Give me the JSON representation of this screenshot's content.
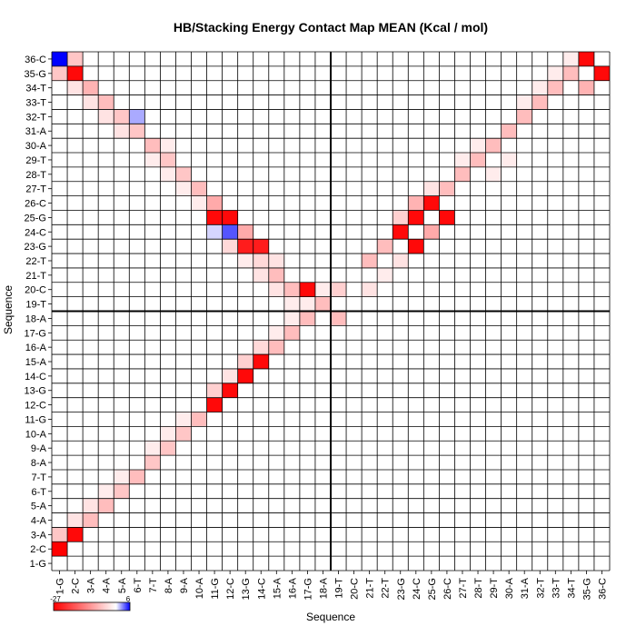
{
  "chart_data": {
    "type": "heatmap",
    "title": "HB/Stacking Energy Contact Map MEAN (Kcal / mol)",
    "xlabel": "Sequence",
    "ylabel": "Sequence",
    "x_tick_labels": [
      "1-G",
      "2-C",
      "3-A",
      "4-A",
      "5-A",
      "6-T",
      "7-T",
      "8-A",
      "9-A",
      "10-A",
      "11-G",
      "12-C",
      "13-G",
      "14-C",
      "15-A",
      "16-A",
      "17-G",
      "18-A",
      "19-T",
      "20-C",
      "21-T",
      "22-T",
      "23-G",
      "24-C",
      "25-G",
      "26-C",
      "27-T",
      "28-T",
      "29-T",
      "30-A",
      "31-A",
      "32-T",
      "33-T",
      "34-T",
      "35-G",
      "36-C"
    ],
    "y_tick_labels": [
      "1-G",
      "2-C",
      "3-A",
      "4-A",
      "5-A",
      "6-T",
      "7-T",
      "8-A",
      "9-A",
      "10-A",
      "11-G",
      "12-C",
      "13-G",
      "14-C",
      "15-A",
      "16-A",
      "17-G",
      "18-A",
      "19-T",
      "20-C",
      "21-T",
      "22-T",
      "23-G",
      "24-C",
      "25-G",
      "26-C",
      "27-T",
      "28-T",
      "29-T",
      "30-A",
      "31-A",
      "32-T",
      "33-T",
      "34-T",
      "35-G",
      "36-C"
    ],
    "colorbar": {
      "min": -27,
      "max": 6,
      "min_label": "-27",
      "max_label": "6",
      "low_color": "#ff0000",
      "mid_color": "#ffffff",
      "high_color": "#0000ff"
    },
    "divider_after_index": 18,
    "cells": [
      [
        1,
        2,
        -27
      ],
      [
        1,
        3,
        -6
      ],
      [
        1,
        35,
        -6
      ],
      [
        1,
        36,
        6
      ],
      [
        2,
        3,
        -26
      ],
      [
        2,
        4,
        -3
      ],
      [
        2,
        34,
        -3
      ],
      [
        2,
        35,
        -26
      ],
      [
        2,
        36,
        -6
      ],
      [
        3,
        4,
        -7
      ],
      [
        3,
        5,
        -3
      ],
      [
        3,
        33,
        -3
      ],
      [
        3,
        34,
        -8
      ],
      [
        4,
        5,
        -7
      ],
      [
        4,
        6,
        -2
      ],
      [
        4,
        32,
        -3
      ],
      [
        4,
        33,
        -7
      ],
      [
        5,
        6,
        -6
      ],
      [
        5,
        7,
        -2
      ],
      [
        5,
        31,
        -3
      ],
      [
        5,
        32,
        -6
      ],
      [
        6,
        7,
        -7
      ],
      [
        6,
        31,
        -6
      ],
      [
        6,
        32,
        2
      ],
      [
        7,
        8,
        -6
      ],
      [
        7,
        9,
        -2
      ],
      [
        7,
        29,
        -2
      ],
      [
        7,
        30,
        -7
      ],
      [
        8,
        9,
        -6
      ],
      [
        8,
        10,
        -2
      ],
      [
        8,
        28,
        -2
      ],
      [
        8,
        29,
        -6
      ],
      [
        8,
        30,
        -2
      ],
      [
        9,
        10,
        -6
      ],
      [
        9,
        11,
        -2
      ],
      [
        9,
        27,
        -2
      ],
      [
        9,
        28,
        -6
      ],
      [
        10,
        11,
        -7
      ],
      [
        10,
        26,
        -2
      ],
      [
        10,
        27,
        -7
      ],
      [
        11,
        12,
        -26
      ],
      [
        11,
        13,
        -5
      ],
      [
        11,
        25,
        -26
      ],
      [
        11,
        26,
        -9
      ],
      [
        11,
        24,
        1
      ],
      [
        12,
        13,
        -26
      ],
      [
        12,
        14,
        -3
      ],
      [
        12,
        24,
        4
      ],
      [
        12,
        25,
        -26
      ],
      [
        12,
        23,
        -4
      ],
      [
        13,
        14,
        -26
      ],
      [
        13,
        15,
        -5
      ],
      [
        13,
        23,
        -24
      ],
      [
        13,
        24,
        -9
      ],
      [
        13,
        22,
        -2
      ],
      [
        14,
        15,
        -26
      ],
      [
        14,
        16,
        -4
      ],
      [
        14,
        22,
        -4
      ],
      [
        14,
        23,
        -24
      ],
      [
        14,
        21,
        -3
      ],
      [
        15,
        16,
        -7
      ],
      [
        15,
        17,
        -2
      ],
      [
        15,
        20,
        -3
      ],
      [
        15,
        21,
        -7
      ],
      [
        15,
        22,
        -3
      ],
      [
        16,
        17,
        -7
      ],
      [
        16,
        18,
        -2
      ],
      [
        16,
        19,
        -2
      ],
      [
        16,
        20,
        -7
      ],
      [
        17,
        18,
        -7
      ],
      [
        17,
        19,
        -2
      ],
      [
        17,
        20,
        -26
      ],
      [
        18,
        19,
        -7
      ],
      [
        18,
        20,
        -2
      ],
      [
        19,
        20,
        -5
      ],
      [
        19,
        18,
        -7
      ],
      [
        21,
        22,
        -7
      ],
      [
        21,
        20,
        -3
      ],
      [
        22,
        23,
        -7
      ],
      [
        22,
        21,
        -2
      ],
      [
        23,
        24,
        -26
      ],
      [
        23,
        25,
        -5
      ],
      [
        23,
        22,
        -3
      ],
      [
        24,
        25,
        -26
      ],
      [
        24,
        26,
        -8
      ],
      [
        24,
        23,
        -26
      ],
      [
        25,
        26,
        -26
      ],
      [
        25,
        27,
        -3
      ],
      [
        25,
        24,
        -9
      ],
      [
        26,
        27,
        -7
      ],
      [
        26,
        25,
        -26
      ],
      [
        27,
        28,
        -7
      ],
      [
        27,
        29,
        -2
      ],
      [
        28,
        29,
        -7
      ],
      [
        28,
        30,
        -2
      ],
      [
        29,
        30,
        -7
      ],
      [
        29,
        28,
        -2
      ],
      [
        30,
        31,
        -7
      ],
      [
        30,
        29,
        -2
      ],
      [
        31,
        32,
        -7
      ],
      [
        31,
        33,
        -2
      ],
      [
        32,
        33,
        -7
      ],
      [
        32,
        34,
        -2
      ],
      [
        33,
        34,
        -7
      ],
      [
        33,
        35,
        -2
      ],
      [
        34,
        35,
        -7
      ],
      [
        34,
        36,
        -2
      ],
      [
        35,
        36,
        -26
      ],
      [
        35,
        34,
        -8
      ],
      [
        36,
        35,
        -26
      ]
    ]
  }
}
